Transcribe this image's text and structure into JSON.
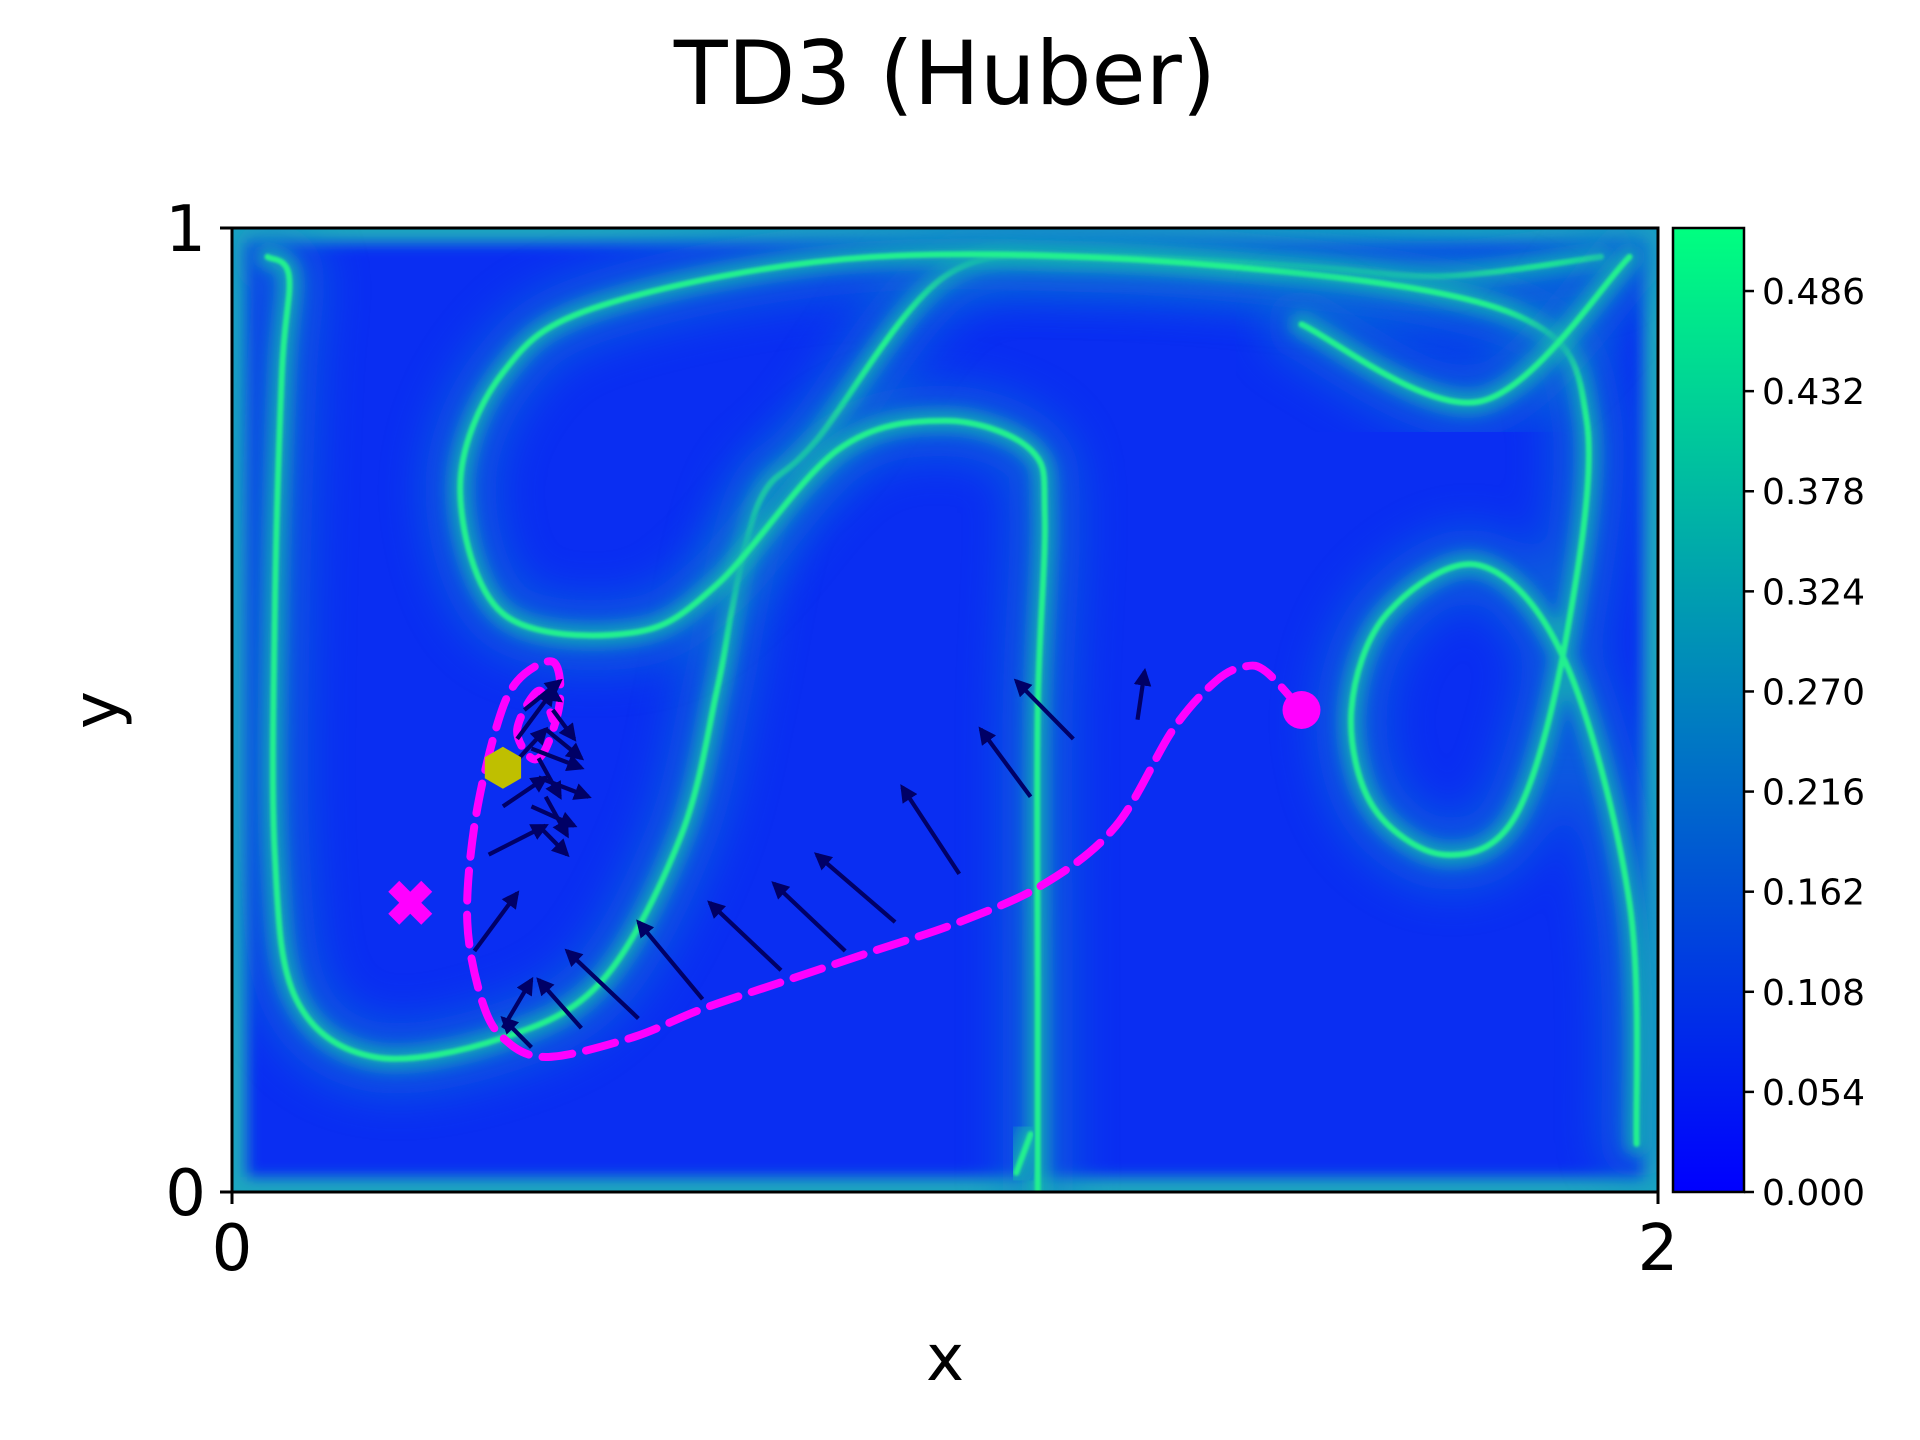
{
  "chart_data": {
    "type": "heatmap",
    "title": "TD3 (Huber)",
    "xlabel": "x",
    "ylabel": "y",
    "xlim": [
      0,
      2
    ],
    "ylim": [
      0,
      1
    ],
    "x_ticks": [
      "0",
      "2"
    ],
    "y_ticks": [
      "0",
      "1"
    ],
    "colormap": "winter",
    "colorbar": {
      "min": 0.0,
      "max": 0.52,
      "ticks": [
        "0.000",
        "0.054",
        "0.108",
        "0.162",
        "0.216",
        "0.270",
        "0.324",
        "0.378",
        "0.432",
        "0.486"
      ],
      "color_low": "#0000ff",
      "color_high": "#00ff80"
    },
    "field_ridges": [
      [
        [
          0.05,
          0.97
        ],
        [
          0.08,
          0.95
        ],
        [
          0.07,
          0.85
        ],
        [
          0.06,
          0.6
        ],
        [
          0.06,
          0.35
        ],
        [
          0.09,
          0.2
        ],
        [
          0.2,
          0.14
        ],
        [
          0.38,
          0.16
        ],
        [
          0.52,
          0.22
        ],
        [
          0.63,
          0.37
        ],
        [
          0.68,
          0.52
        ],
        [
          0.7,
          0.6
        ],
        [
          0.72,
          0.67
        ],
        [
          0.75,
          0.73
        ],
        [
          0.82,
          0.78
        ],
        [
          1.0,
          0.95
        ],
        [
          1.2,
          0.97
        ],
        [
          1.5,
          0.96
        ],
        [
          1.7,
          0.95
        ],
        [
          1.92,
          0.97
        ]
      ],
      [
        [
          1.13,
          0.0
        ],
        [
          1.13,
          0.2
        ],
        [
          1.13,
          0.5
        ],
        [
          1.14,
          0.7
        ],
        [
          1.12,
          0.77
        ],
        [
          1.0,
          0.8
        ],
        [
          0.85,
          0.77
        ],
        [
          0.68,
          0.63
        ],
        [
          0.56,
          0.58
        ],
        [
          0.38,
          0.6
        ],
        [
          0.32,
          0.73
        ],
        [
          0.38,
          0.85
        ],
        [
          0.52,
          0.92
        ],
        [
          0.9,
          0.97
        ],
        [
          1.4,
          0.96
        ],
        [
          1.8,
          0.91
        ],
        [
          1.9,
          0.8
        ],
        [
          1.87,
          0.57
        ],
        [
          1.8,
          0.39
        ],
        [
          1.7,
          0.35
        ],
        [
          1.6,
          0.4
        ],
        [
          1.57,
          0.5
        ],
        [
          1.62,
          0.6
        ],
        [
          1.75,
          0.65
        ],
        [
          1.87,
          0.55
        ],
        [
          1.96,
          0.3
        ],
        [
          1.97,
          0.05
        ]
      ],
      [
        [
          1.5,
          0.9
        ],
        [
          1.75,
          0.82
        ],
        [
          1.96,
          0.97
        ]
      ],
      [
        [
          1.1,
          0.02
        ],
        [
          1.12,
          0.06
        ]
      ]
    ],
    "trajectory": [
      [
        1.5,
        0.5
      ],
      [
        1.45,
        0.54
      ],
      [
        1.42,
        0.545
      ],
      [
        1.38,
        0.53
      ],
      [
        1.32,
        0.48
      ],
      [
        1.24,
        0.38
      ],
      [
        1.14,
        0.32
      ],
      [
        1.02,
        0.28
      ],
      [
        0.9,
        0.25
      ],
      [
        0.78,
        0.22
      ],
      [
        0.66,
        0.19
      ],
      [
        0.56,
        0.16
      ],
      [
        0.44,
        0.14
      ],
      [
        0.38,
        0.16
      ],
      [
        0.35,
        0.2
      ],
      [
        0.33,
        0.28
      ],
      [
        0.34,
        0.38
      ],
      [
        0.37,
        0.48
      ],
      [
        0.4,
        0.53
      ],
      [
        0.45,
        0.55
      ],
      [
        0.46,
        0.51
      ],
      [
        0.44,
        0.46
      ],
      [
        0.42,
        0.45
      ],
      [
        0.4,
        0.48
      ],
      [
        0.43,
        0.52
      ],
      [
        0.45,
        0.49
      ]
    ],
    "start_point": [
      1.5,
      0.5
    ],
    "target_point": [
      0.25,
      0.3
    ],
    "final_point": [
      0.38,
      0.44
    ],
    "action_arrows": [
      [
        [
          1.27,
          0.49
        ],
        [
          1.28,
          0.54
        ]
      ],
      [
        [
          1.18,
          0.47
        ],
        [
          1.1,
          0.53
        ]
      ],
      [
        [
          1.12,
          0.41
        ],
        [
          1.05,
          0.48
        ]
      ],
      [
        [
          1.02,
          0.33
        ],
        [
          0.94,
          0.42
        ]
      ],
      [
        [
          0.93,
          0.28
        ],
        [
          0.82,
          0.35
        ]
      ],
      [
        [
          0.86,
          0.25
        ],
        [
          0.76,
          0.32
        ]
      ],
      [
        [
          0.77,
          0.23
        ],
        [
          0.67,
          0.3
        ]
      ],
      [
        [
          0.66,
          0.2
        ],
        [
          0.57,
          0.28
        ]
      ],
      [
        [
          0.57,
          0.18
        ],
        [
          0.47,
          0.25
        ]
      ],
      [
        [
          0.49,
          0.17
        ],
        [
          0.43,
          0.22
        ]
      ],
      [
        [
          0.42,
          0.15
        ],
        [
          0.38,
          0.18
        ]
      ],
      [
        [
          0.38,
          0.17
        ],
        [
          0.42,
          0.22
        ]
      ],
      [
        [
          0.34,
          0.25
        ],
        [
          0.4,
          0.31
        ]
      ],
      [
        [
          0.36,
          0.35
        ],
        [
          0.44,
          0.38
        ]
      ],
      [
        [
          0.38,
          0.4
        ],
        [
          0.44,
          0.43
        ]
      ],
      [
        [
          0.39,
          0.44
        ],
        [
          0.44,
          0.48
        ]
      ],
      [
        [
          0.4,
          0.47
        ],
        [
          0.45,
          0.52
        ]
      ],
      [
        [
          0.41,
          0.5
        ],
        [
          0.46,
          0.53
        ]
      ],
      [
        [
          0.42,
          0.46
        ],
        [
          0.49,
          0.44
        ]
      ],
      [
        [
          0.43,
          0.43
        ],
        [
          0.5,
          0.41
        ]
      ],
      [
        [
          0.42,
          0.4
        ],
        [
          0.48,
          0.38
        ]
      ],
      [
        [
          0.44,
          0.48
        ],
        [
          0.49,
          0.45
        ]
      ],
      [
        [
          0.45,
          0.5
        ],
        [
          0.48,
          0.47
        ]
      ],
      [
        [
          0.44,
          0.41
        ],
        [
          0.47,
          0.37
        ]
      ],
      [
        [
          0.43,
          0.38
        ],
        [
          0.47,
          0.35
        ]
      ],
      [
        [
          0.43,
          0.45
        ],
        [
          0.46,
          0.41
        ]
      ],
      [
        [
          0.44,
          0.52
        ],
        [
          0.46,
          0.51
        ]
      ]
    ],
    "colors": {
      "trajectory": "#ff00ff",
      "arrows": "#000066",
      "final_marker": "#bfbf00",
      "target_marker": "#ff00ff",
      "start_marker": "#ff00ff"
    },
    "grid": false
  }
}
